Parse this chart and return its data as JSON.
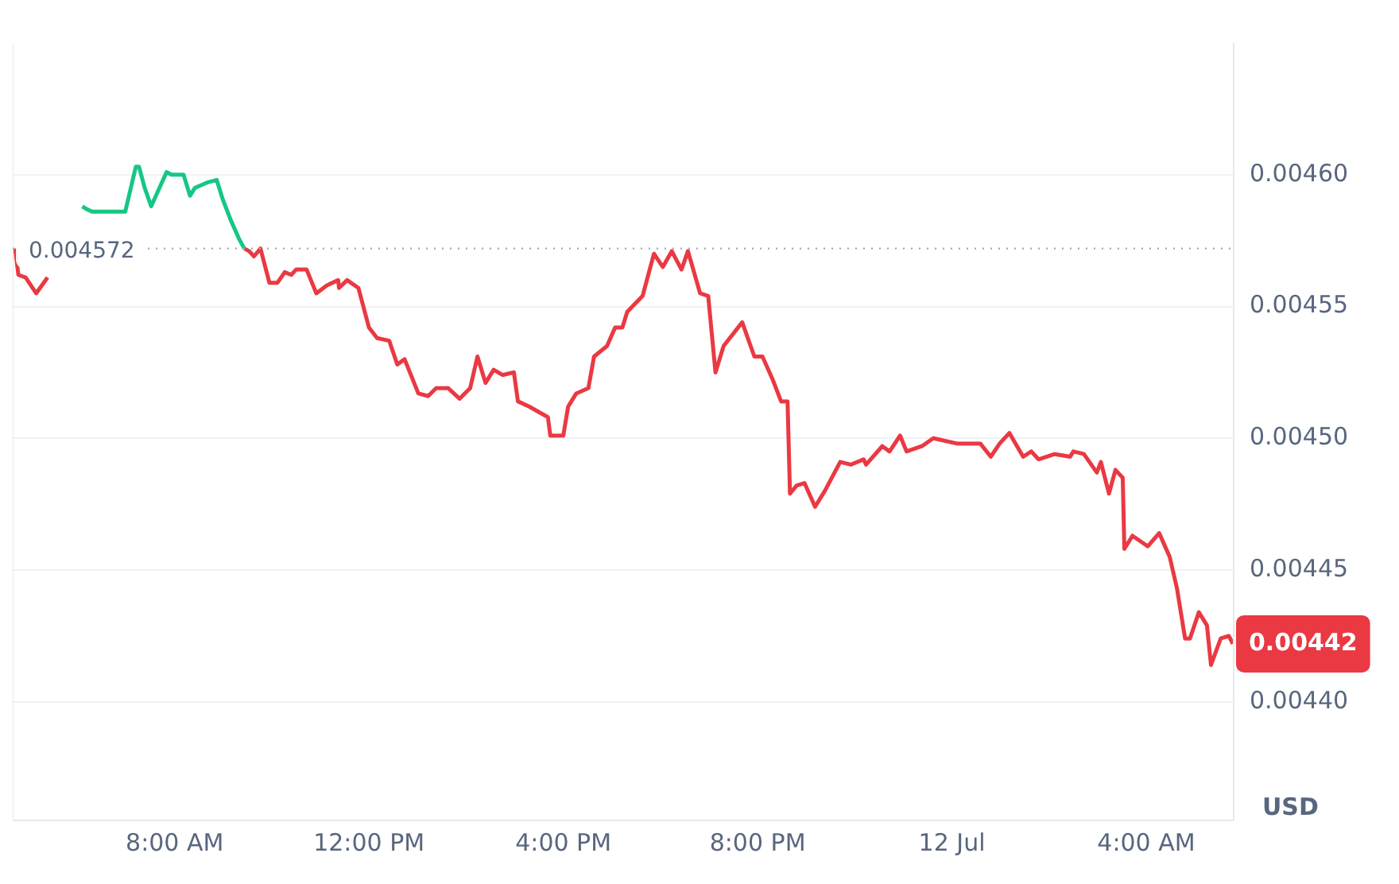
{
  "chart_data": {
    "type": "line",
    "ylabel": "USD",
    "xlim": [
      "--07-11T04:40",
      "--07-12T05:48"
    ],
    "xticks": [
      {
        "value": "--07-11T08:00",
        "label": "8:00 AM"
      },
      {
        "value": "--07-11T12:00",
        "label": "12:00 PM"
      },
      {
        "value": "--07-11T16:00",
        "label": "4:00 PM"
      },
      {
        "value": "--07-11T20:00",
        "label": "8:00 PM"
      },
      {
        "value": "--07-12T00:00",
        "label": "12 Jul"
      },
      {
        "value": "--07-12T04:00",
        "label": "4:00 AM"
      }
    ],
    "ylim": [
      0.004355,
      0.00465
    ],
    "yticks": [
      {
        "value": 0.0044,
        "label": "0.00440"
      },
      {
        "value": 0.00445,
        "label": "0.00445"
      },
      {
        "value": 0.0045,
        "label": "0.00450"
      },
      {
        "value": 0.00455,
        "label": "0.00455"
      },
      {
        "value": 0.0046,
        "label": "0.00460"
      }
    ],
    "grid": "y",
    "legend": false,
    "marker": "none",
    "line_style": "solid",
    "ref_lines": [
      {
        "axis": "y",
        "value": 0.004572,
        "label": "0.004572",
        "color": "#a0a7b4",
        "line_style": "dotted"
      }
    ],
    "annotations": [
      {
        "text": "0.00442",
        "x": "--07-12T05:47",
        "y": 0.004422
      }
    ],
    "series": [
      {
        "color": "#ea3943",
        "x": [
          "--07-11T04:43",
          "--07-11T04:47",
          "--07-11T04:56",
          "--07-11T05:09",
          "--07-11T05:23"
        ],
        "values": [
          0.004572,
          0.004562,
          0.004561,
          0.004555,
          0.004561
        ]
      },
      {
        "color": "#16c784",
        "x": [
          "--07-11T06:06",
          "--07-11T06:11",
          "--07-11T06:18",
          "--07-11T06:59",
          "--07-11T07:12",
          "--07-11T07:16",
          "--07-11T07:23",
          "--07-11T07:31",
          "--07-11T07:50",
          "--07-11T07:56",
          "--07-11T08:06",
          "--07-11T08:11",
          "--07-11T08:19",
          "--07-11T08:25",
          "--07-11T08:40",
          "--07-11T08:52",
          "--07-11T08:59",
          "--07-11T09:09",
          "--07-11T09:19",
          "--07-11T09:26"
        ],
        "values": [
          0.004588,
          0.004587,
          0.004586,
          0.004586,
          0.004603,
          0.004603,
          0.004595,
          0.004588,
          0.004601,
          0.0046,
          0.0046,
          0.0046,
          0.004592,
          0.004595,
          0.004597,
          0.004598,
          0.004591,
          0.004583,
          0.004576,
          0.004572
        ]
      },
      {
        "color": "#ea3943",
        "x": [
          "--07-11T09:26",
          "--07-11T09:32",
          "--07-11T09:38",
          "--07-11T09:46",
          "--07-11T09:57",
          "--07-11T10:07",
          "--07-11T10:16",
          "--07-11T10:24",
          "--07-11T10:30",
          "--07-11T10:43",
          "--07-11T10:55",
          "--07-11T11:08",
          "--07-11T11:22",
          "--07-11T11:23",
          "--07-11T11:33",
          "--07-11T11:47",
          "--07-11T12:00",
          "--07-11T12:10",
          "--07-11T12:25",
          "--07-11T12:35",
          "--07-11T12:44",
          "--07-11T13:01",
          "--07-11T13:13",
          "--07-11T13:23",
          "--07-11T13:38",
          "--07-11T13:52",
          "--07-11T14:05",
          "--07-11T14:14",
          "--07-11T14:24",
          "--07-11T14:34",
          "--07-11T14:45",
          "--07-11T14:59",
          "--07-11T15:04",
          "--07-11T15:18",
          "--07-11T15:41",
          "--07-11T15:44",
          "--07-11T16:00",
          "--07-11T16:06",
          "--07-11T16:16",
          "--07-11T16:31",
          "--07-11T16:38",
          "--07-11T16:54",
          "--07-11T17:04",
          "--07-11T17:13",
          "--07-11T17:19",
          "--07-11T17:38",
          "--07-11T17:52",
          "--07-11T18:03",
          "--07-11T18:14",
          "--07-11T18:26",
          "--07-11T18:34",
          "--07-11T18:49",
          "--07-11T18:59",
          "--07-11T19:08",
          "--07-11T19:18",
          "--07-11T19:41",
          "--07-11T19:56",
          "--07-11T20:06",
          "--07-11T20:19",
          "--07-11T20:29",
          "--07-11T20:37",
          "--07-11T20:40",
          "--07-11T20:48",
          "--07-11T20:58",
          "--07-11T21:11",
          "--07-11T21:23",
          "--07-11T21:42",
          "--07-11T21:55",
          "--07-11T22:11",
          "--07-11T22:14",
          "--07-11T22:34",
          "--07-11T22:43",
          "--07-11T22:56",
          "--07-11T23:04",
          "--07-11T23:23",
          "--07-11T23:37",
          "--07-12T00:06",
          "--07-12T00:35",
          "--07-12T00:48",
          "--07-12T00:59",
          "--07-12T01:11",
          "--07-12T01:28",
          "--07-12T01:38",
          "--07-12T01:47",
          "--07-12T02:07",
          "--07-12T02:26",
          "--07-12T02:30",
          "--07-12T02:43",
          "--07-12T02:59",
          "--07-12T03:04",
          "--07-12T03:14",
          "--07-12T03:22",
          "--07-12T03:31",
          "--07-12T03:33",
          "--07-12T03:43",
          "--07-12T04:02",
          "--07-12T04:16",
          "--07-12T04:29",
          "--07-12T04:38",
          "--07-12T04:48",
          "--07-12T04:54",
          "--07-12T05:05",
          "--07-12T05:15",
          "--07-12T05:20",
          "--07-12T05:32",
          "--07-12T05:42",
          "--07-12T05:47"
        ],
        "values": [
          0.004572,
          0.004571,
          0.004569,
          0.004572,
          0.004559,
          0.004559,
          0.004563,
          0.004562,
          0.004564,
          0.004564,
          0.004555,
          0.004558,
          0.00456,
          0.004557,
          0.00456,
          0.004557,
          0.004542,
          0.004538,
          0.004537,
          0.004528,
          0.00453,
          0.004517,
          0.004516,
          0.004519,
          0.004519,
          0.004515,
          0.004519,
          0.004531,
          0.004521,
          0.004526,
          0.004524,
          0.004525,
          0.004514,
          0.004512,
          0.004508,
          0.004501,
          0.004501,
          0.004512,
          0.004517,
          0.004519,
          0.004531,
          0.004535,
          0.004542,
          0.004542,
          0.004548,
          0.004554,
          0.00457,
          0.004565,
          0.004571,
          0.004564,
          0.004571,
          0.004555,
          0.004554,
          0.004525,
          0.004535,
          0.004544,
          0.004531,
          0.004531,
          0.004522,
          0.004514,
          0.004514,
          0.004479,
          0.004482,
          0.004483,
          0.004474,
          0.00448,
          0.004491,
          0.00449,
          0.004492,
          0.00449,
          0.004497,
          0.004495,
          0.004501,
          0.004495,
          0.004497,
          0.0045,
          0.004498,
          0.004498,
          0.004493,
          0.004498,
          0.004502,
          0.004493,
          0.004495,
          0.004492,
          0.004494,
          0.004493,
          0.004495,
          0.004494,
          0.004487,
          0.004491,
          0.004479,
          0.004488,
          0.004485,
          0.004458,
          0.004463,
          0.004459,
          0.004464,
          0.004455,
          0.004443,
          0.004424,
          0.004424,
          0.004434,
          0.004429,
          0.004414,
          0.004424,
          0.004425,
          0.004422
        ]
      }
    ]
  }
}
